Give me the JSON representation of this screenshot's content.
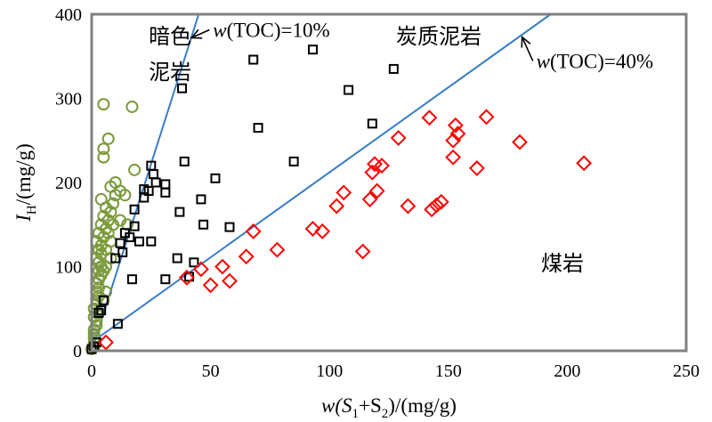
{
  "chart_data": {
    "type": "scatter",
    "xlim": [
      0,
      250
    ],
    "ylim": [
      0,
      400
    ],
    "xticks": [
      0,
      50,
      100,
      150,
      200,
      250
    ],
    "yticks": [
      0,
      100,
      200,
      300,
      400
    ],
    "xlabel": {
      "pre": "w(S",
      "sub1": "1",
      "mid": "+S",
      "sub2": "2",
      "post": ")/(mg/g)"
    },
    "ylabel": {
      "main": "I",
      "sub": "H",
      "post": "/(mg/g)"
    },
    "series": [
      {
        "name": "暗色泥岩",
        "marker": "circle",
        "color": "#7a9a3a",
        "points": [
          [
            0,
            2
          ],
          [
            1,
            5
          ],
          [
            1,
            10
          ],
          [
            1,
            15
          ],
          [
            1,
            20
          ],
          [
            1,
            25
          ],
          [
            2,
            30
          ],
          [
            2,
            35
          ],
          [
            1,
            40
          ],
          [
            2,
            45
          ],
          [
            1,
            50
          ],
          [
            2,
            55
          ],
          [
            2,
            60
          ],
          [
            3,
            65
          ],
          [
            2,
            70
          ],
          [
            3,
            75
          ],
          [
            2,
            80
          ],
          [
            3,
            85
          ],
          [
            4,
            90
          ],
          [
            3,
            95
          ],
          [
            4,
            100
          ],
          [
            3,
            105
          ],
          [
            2,
            110
          ],
          [
            4,
            115
          ],
          [
            3,
            120
          ],
          [
            4,
            125
          ],
          [
            2,
            130
          ],
          [
            5,
            135
          ],
          [
            3,
            140
          ],
          [
            6,
            145
          ],
          [
            4,
            150
          ],
          [
            7,
            155
          ],
          [
            5,
            160
          ],
          [
            8,
            165
          ],
          [
            6,
            170
          ],
          [
            9,
            175
          ],
          [
            4,
            180
          ],
          [
            10,
            185
          ],
          [
            12,
            190
          ],
          [
            8,
            195
          ],
          [
            10,
            200
          ],
          [
            5,
            230
          ],
          [
            5,
            240
          ],
          [
            7,
            252
          ],
          [
            18,
            215
          ],
          [
            17,
            290
          ],
          [
            5,
            293
          ],
          [
            3,
            85
          ],
          [
            5,
            95
          ],
          [
            6,
            100
          ],
          [
            8,
            110
          ],
          [
            6,
            120
          ],
          [
            8,
            130
          ],
          [
            7,
            140
          ],
          [
            9,
            150
          ],
          [
            12,
            155
          ],
          [
            14,
            185
          ],
          [
            15,
            150
          ],
          [
            6,
            70
          ],
          [
            5,
            60
          ]
        ]
      },
      {
        "name": "炭质泥岩",
        "marker": "square",
        "color": "#000000",
        "points": [
          [
            0,
            2
          ],
          [
            1,
            5
          ],
          [
            2,
            10
          ],
          [
            3,
            45
          ],
          [
            4,
            48
          ],
          [
            11,
            32
          ],
          [
            5,
            60
          ],
          [
            10,
            110
          ],
          [
            13,
            117
          ],
          [
            12,
            128
          ],
          [
            17,
            85
          ],
          [
            14,
            140
          ],
          [
            16,
            135
          ],
          [
            18,
            148
          ],
          [
            18,
            168
          ],
          [
            20,
            130
          ],
          [
            22,
            182
          ],
          [
            22,
            192
          ],
          [
            24,
            190
          ],
          [
            25,
            130
          ],
          [
            26,
            210
          ],
          [
            25,
            220
          ],
          [
            27,
            200
          ],
          [
            31,
            188
          ],
          [
            31,
            198
          ],
          [
            31,
            85
          ],
          [
            36,
            110
          ],
          [
            37,
            165
          ],
          [
            38,
            312
          ],
          [
            39,
            225
          ],
          [
            41,
            88
          ],
          [
            43,
            105
          ],
          [
            46,
            180
          ],
          [
            47,
            150
          ],
          [
            52,
            205
          ],
          [
            58,
            147
          ],
          [
            68,
            346
          ],
          [
            70,
            265
          ],
          [
            85,
            225
          ],
          [
            93,
            358
          ],
          [
            108,
            310
          ],
          [
            118,
            270
          ],
          [
            127,
            335
          ]
        ]
      },
      {
        "name": "煤岩",
        "marker": "diamond",
        "color": "#ff0000",
        "points": [
          [
            6,
            10
          ],
          [
            40,
            87
          ],
          [
            46,
            97
          ],
          [
            50,
            78
          ],
          [
            55,
            100
          ],
          [
            58,
            83
          ],
          [
            65,
            112
          ],
          [
            68,
            142
          ],
          [
            78,
            120
          ],
          [
            93,
            145
          ],
          [
            97,
            142
          ],
          [
            103,
            172
          ],
          [
            106,
            188
          ],
          [
            114,
            118
          ],
          [
            117,
            180
          ],
          [
            118,
            212
          ],
          [
            119,
            222
          ],
          [
            120,
            190
          ],
          [
            122,
            220
          ],
          [
            129,
            253
          ],
          [
            133,
            172
          ],
          [
            142,
            277
          ],
          [
            143,
            168
          ],
          [
            145,
            173
          ],
          [
            147,
            177
          ],
          [
            152,
            230
          ],
          [
            152,
            250
          ],
          [
            153,
            268
          ],
          [
            154,
            258
          ],
          [
            162,
            217
          ],
          [
            166,
            278
          ],
          [
            180,
            248
          ],
          [
            207,
            223
          ]
        ]
      }
    ],
    "lines": [
      {
        "label": "w(TOC)=10%",
        "from": [
          0,
          0
        ],
        "to": [
          45,
          400
        ],
        "color": "#3a7cc7"
      },
      {
        "label": "w(TOC)=40%",
        "from": [
          0,
          10
        ],
        "to": [
          193,
          400
        ],
        "color": "#3a7cc7"
      }
    ],
    "annotations": [
      {
        "text": "暗色",
        "x": 24,
        "y": 365
      },
      {
        "text": "泥岩",
        "x": 24,
        "y": 323
      },
      {
        "text": "炭质泥岩",
        "x": 128,
        "y": 365
      },
      {
        "text": "煤岩",
        "x": 189,
        "y": 95
      },
      {
        "text_pre": "w",
        "text_post": "(TOC)=10%",
        "x": 51,
        "y": 373,
        "arrow_to": [
          42,
          372
        ]
      },
      {
        "text_pre": "w",
        "text_post": "(TOC)=40%",
        "x": 187,
        "y": 336,
        "arrow_to": [
          181,
          373
        ]
      }
    ]
  }
}
